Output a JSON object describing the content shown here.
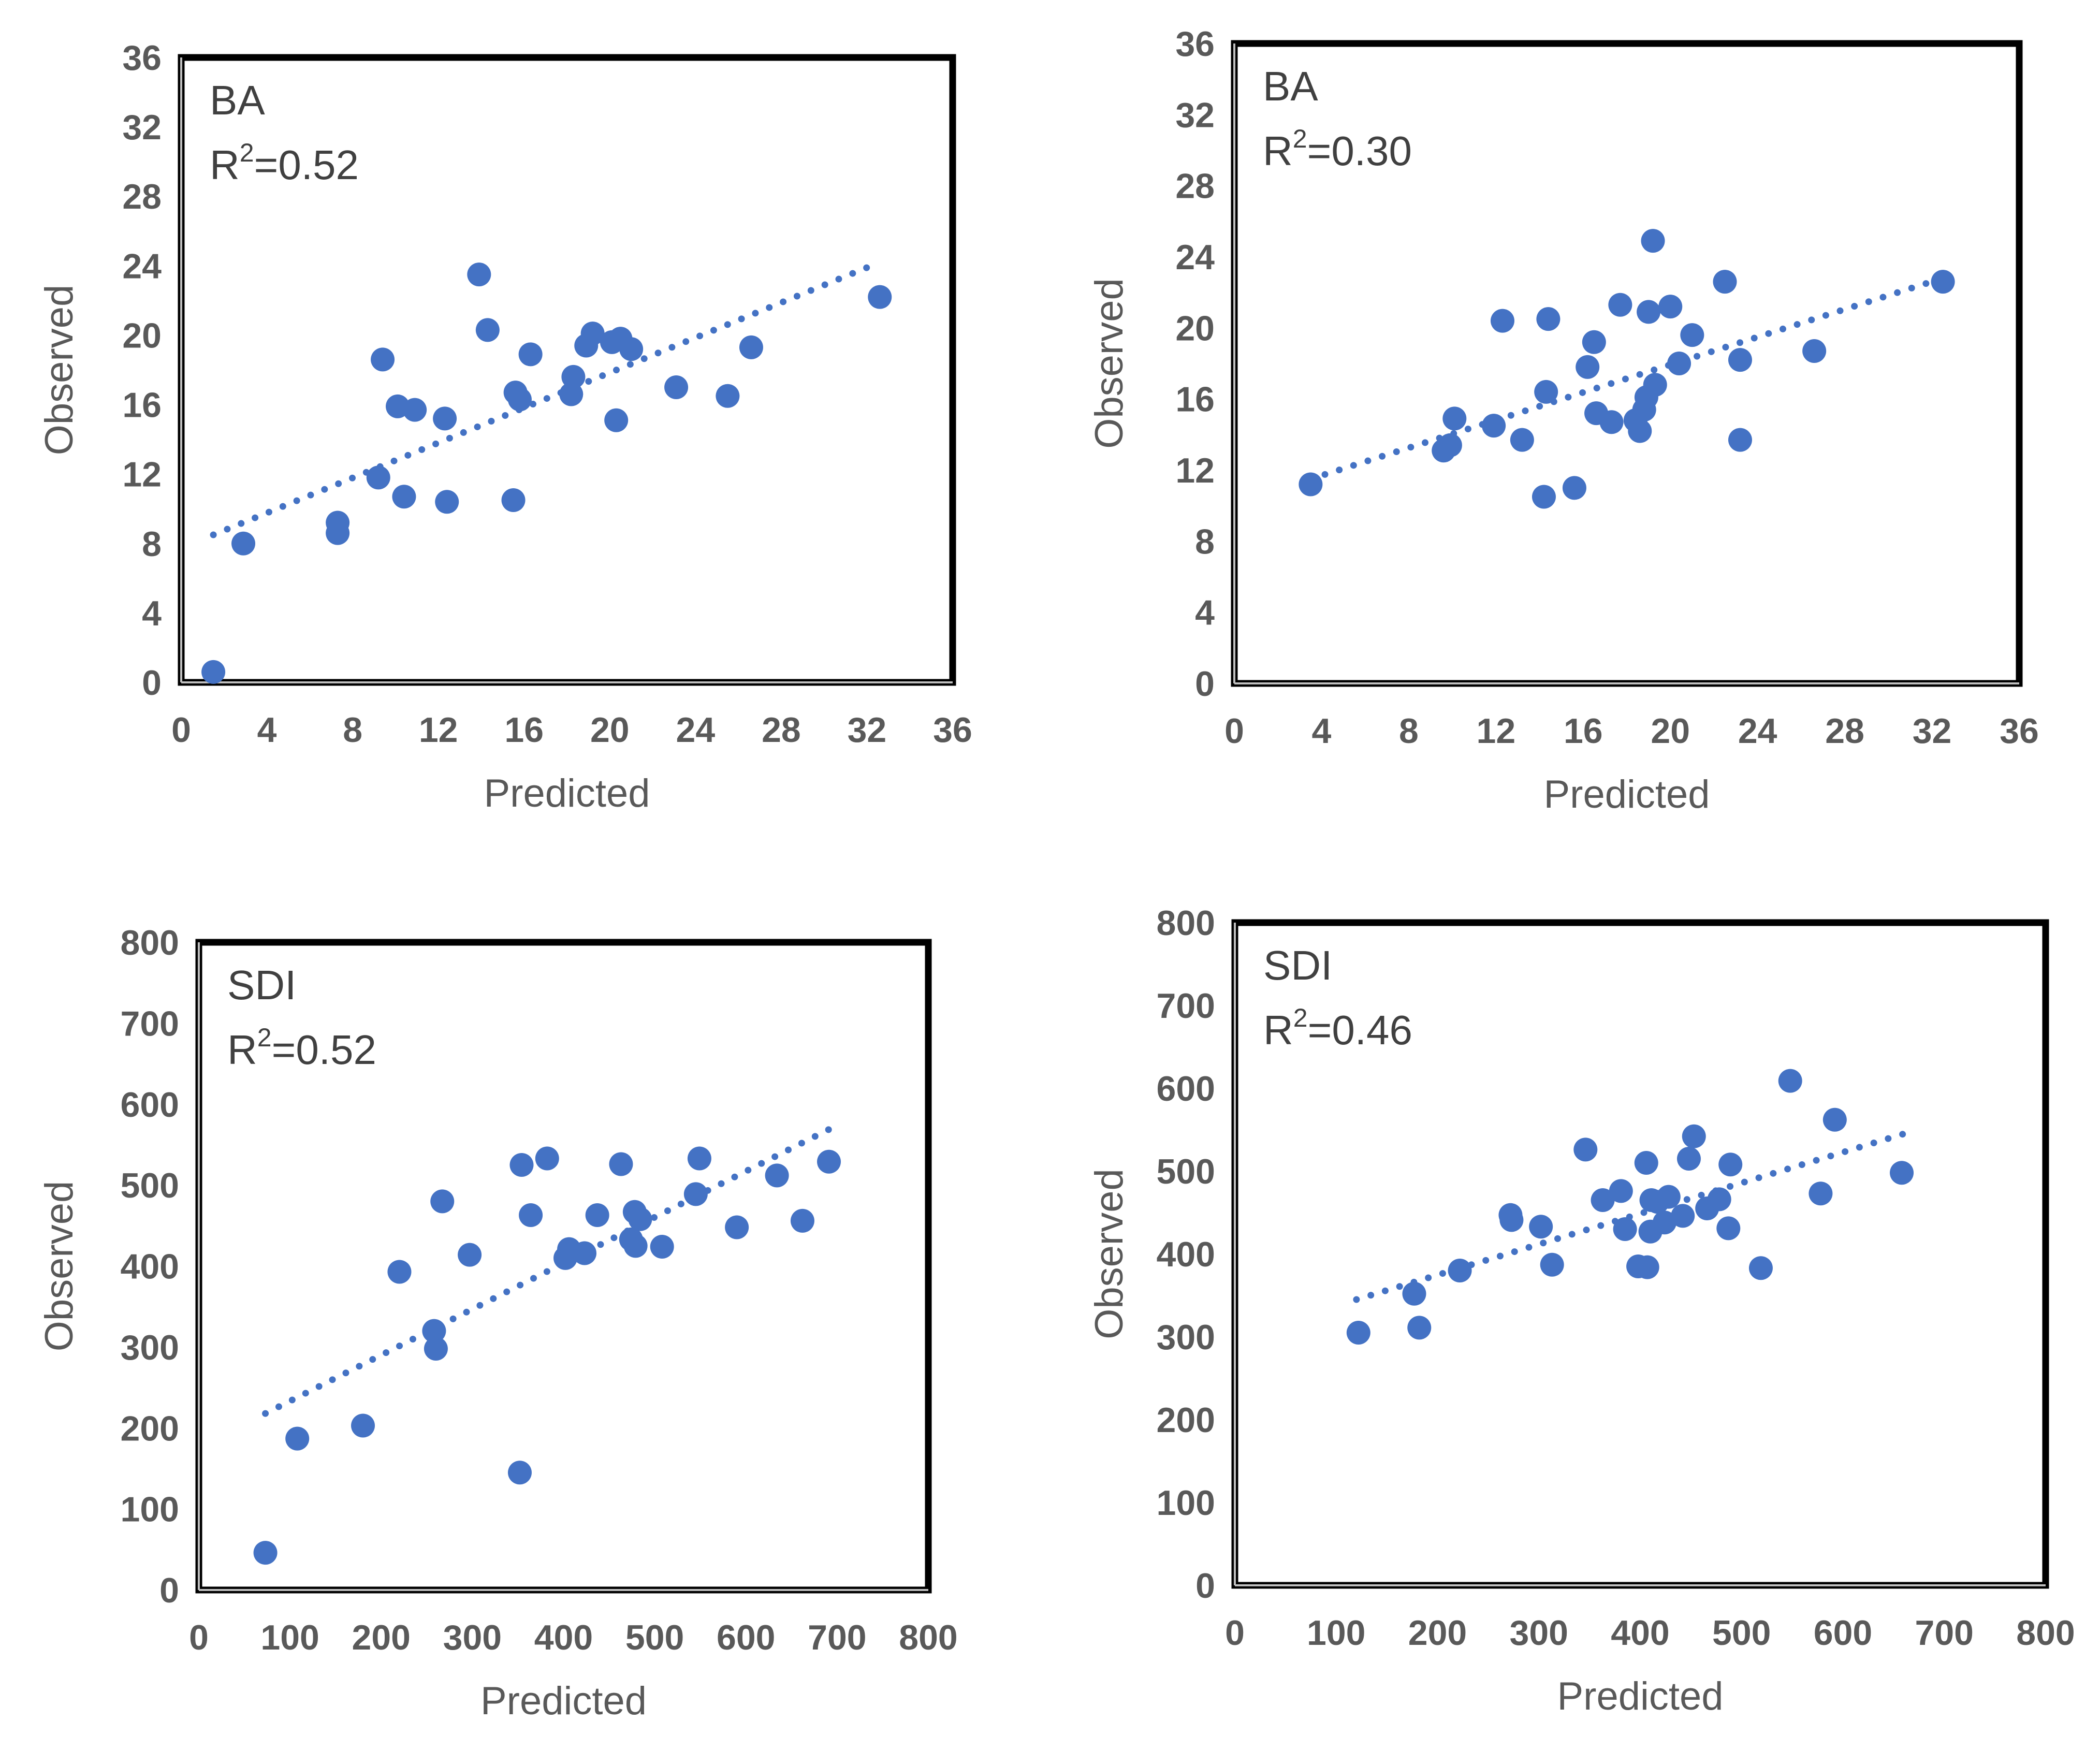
{
  "chart_data": [
    {
      "type": "scatter",
      "panel": "top-left",
      "annotation": {
        "name": "BA",
        "r2_prefix": "R",
        "r2_sup": "2",
        "r2_value": "=0.52"
      },
      "xlabel": "Predicted",
      "ylabel": "Observed",
      "xlim": [
        0,
        36
      ],
      "ylim": [
        0,
        36
      ],
      "xticks": [
        "0",
        "4",
        "8",
        "12",
        "16",
        "20",
        "24",
        "28",
        "32",
        "36"
      ],
      "yticks": [
        "0",
        "4",
        "8",
        "12",
        "16",
        "20",
        "24",
        "28",
        "32",
        "36"
      ],
      "trendline": {
        "style": "dotted",
        "x": [
          1.5,
          32.6
        ],
        "y": [
          8.5,
          24.2
        ]
      },
      "marker_color": "#4472C4",
      "points": [
        [
          1.5,
          0.6
        ],
        [
          2.9,
          8.0
        ],
        [
          7.3,
          9.2
        ],
        [
          7.3,
          8.6
        ],
        [
          9.2,
          11.8
        ],
        [
          9.4,
          18.6
        ],
        [
          10.1,
          15.9
        ],
        [
          10.4,
          10.7
        ],
        [
          10.9,
          15.7
        ],
        [
          12.3,
          15.2
        ],
        [
          12.4,
          10.4
        ],
        [
          13.9,
          23.5
        ],
        [
          14.3,
          20.3
        ],
        [
          15.5,
          10.5
        ],
        [
          15.6,
          16.7
        ],
        [
          15.8,
          16.3
        ],
        [
          16.3,
          18.9
        ],
        [
          18.2,
          16.6
        ],
        [
          18.3,
          17.6
        ],
        [
          18.9,
          19.4
        ],
        [
          19.2,
          20.1
        ],
        [
          20.1,
          19.6
        ],
        [
          20.3,
          15.1
        ],
        [
          20.5,
          19.8
        ],
        [
          21.0,
          19.2
        ],
        [
          23.1,
          17.0
        ],
        [
          25.5,
          16.5
        ],
        [
          26.6,
          19.3
        ],
        [
          32.6,
          22.2
        ]
      ]
    },
    {
      "type": "scatter",
      "panel": "top-right",
      "annotation": {
        "name": "BA",
        "r2_prefix": "R",
        "r2_sup": "2",
        "r2_value": "=0.30"
      },
      "xlabel": "Predicted",
      "ylabel": "Observed",
      "xlim": [
        0,
        36
      ],
      "ylim": [
        0,
        36
      ],
      "xticks": [
        "0",
        "4",
        "8",
        "12",
        "16",
        "20",
        "24",
        "28",
        "32",
        "36"
      ],
      "yticks": [
        "0",
        "4",
        "8",
        "12",
        "16",
        "20",
        "24",
        "28",
        "32",
        "36"
      ],
      "trendline": {
        "style": "dotted",
        "x": [
          3.5,
          32.5
        ],
        "y": [
          11.5,
          22.8
        ]
      },
      "marker_color": "#4472C4",
      "points": [
        [
          3.5,
          11.2
        ],
        [
          9.6,
          13.1
        ],
        [
          9.9,
          13.4
        ],
        [
          10.1,
          14.9
        ],
        [
          11.9,
          14.5
        ],
        [
          12.3,
          20.4
        ],
        [
          13.2,
          13.7
        ],
        [
          14.2,
          10.5
        ],
        [
          14.3,
          16.4
        ],
        [
          14.4,
          20.5
        ],
        [
          15.6,
          11.0
        ],
        [
          16.2,
          17.8
        ],
        [
          16.5,
          19.2
        ],
        [
          16.6,
          15.2
        ],
        [
          17.3,
          14.7
        ],
        [
          17.7,
          21.3
        ],
        [
          18.4,
          14.8
        ],
        [
          18.6,
          14.2
        ],
        [
          18.8,
          15.4
        ],
        [
          18.9,
          16.1
        ],
        [
          19.0,
          20.9
        ],
        [
          19.2,
          24.9
        ],
        [
          19.3,
          16.8
        ],
        [
          20.0,
          21.2
        ],
        [
          20.4,
          18.0
        ],
        [
          21.0,
          19.6
        ],
        [
          22.5,
          22.6
        ],
        [
          23.2,
          18.2
        ],
        [
          23.2,
          13.7
        ],
        [
          26.6,
          18.7
        ],
        [
          32.5,
          22.6
        ]
      ]
    },
    {
      "type": "scatter",
      "panel": "bottom-left",
      "annotation": {
        "name": "SDI",
        "r2_prefix": "R",
        "r2_sup": "2",
        "r2_value": "=0.52"
      },
      "xlabel": "Predicted",
      "ylabel": "Observed",
      "xlim": [
        0,
        800
      ],
      "ylim": [
        0,
        800
      ],
      "xticks": [
        "0",
        "100",
        "200",
        "300",
        "400",
        "500",
        "600",
        "700",
        "800"
      ],
      "yticks": [
        "0",
        "100",
        "200",
        "300",
        "400",
        "500",
        "600",
        "700",
        "800"
      ],
      "trendline": {
        "style": "dotted",
        "x": [
          73,
          693
        ],
        "y": [
          218,
          570
        ]
      },
      "marker_color": "#4472C4",
      "points": [
        [
          73,
          46
        ],
        [
          108,
          187
        ],
        [
          180,
          203
        ],
        [
          220,
          393
        ],
        [
          258,
          320
        ],
        [
          260,
          298
        ],
        [
          267,
          480
        ],
        [
          297,
          414
        ],
        [
          352,
          145
        ],
        [
          354,
          525
        ],
        [
          364,
          463
        ],
        [
          382,
          533
        ],
        [
          402,
          410
        ],
        [
          406,
          421
        ],
        [
          423,
          416
        ],
        [
          437,
          463
        ],
        [
          463,
          526
        ],
        [
          474,
          433
        ],
        [
          478,
          467
        ],
        [
          479,
          425
        ],
        [
          484,
          458
        ],
        [
          508,
          424
        ],
        [
          545,
          489
        ],
        [
          549,
          533
        ],
        [
          590,
          448
        ],
        [
          634,
          512
        ],
        [
          662,
          456
        ],
        [
          691,
          529
        ]
      ]
    },
    {
      "type": "scatter",
      "panel": "bottom-right",
      "annotation": {
        "name": "SDI",
        "r2_prefix": "R",
        "r2_sup": "2",
        "r2_value": "=0.46"
      },
      "xlabel": "Predicted",
      "ylabel": "Observed",
      "xlim": [
        0,
        800
      ],
      "ylim": [
        0,
        800
      ],
      "xticks": [
        "0",
        "100",
        "200",
        "300",
        "400",
        "500",
        "600",
        "700",
        "800"
      ],
      "yticks": [
        "0",
        "100",
        "200",
        "300",
        "400",
        "500",
        "600",
        "700",
        "800"
      ],
      "trendline": {
        "style": "dotted",
        "x": [
          120,
          660
        ],
        "y": [
          345,
          545
        ]
      },
      "marker_color": "#4472C4",
      "points": [
        [
          122,
          305
        ],
        [
          177,
          352
        ],
        [
          182,
          311
        ],
        [
          222,
          380
        ],
        [
          272,
          447
        ],
        [
          273,
          441
        ],
        [
          302,
          433
        ],
        [
          313,
          387
        ],
        [
          346,
          526
        ],
        [
          363,
          465
        ],
        [
          381,
          476
        ],
        [
          385,
          430
        ],
        [
          398,
          385
        ],
        [
          406,
          510
        ],
        [
          407,
          384
        ],
        [
          410,
          427
        ],
        [
          411,
          465
        ],
        [
          417,
          463
        ],
        [
          424,
          438
        ],
        [
          428,
          469
        ],
        [
          442,
          446
        ],
        [
          448,
          515
        ],
        [
          453,
          542
        ],
        [
          466,
          455
        ],
        [
          478,
          466
        ],
        [
          487,
          431
        ],
        [
          489,
          508
        ],
        [
          519,
          383
        ],
        [
          548,
          609
        ],
        [
          578,
          473
        ],
        [
          592,
          562
        ],
        [
          658,
          498
        ]
      ]
    }
  ]
}
